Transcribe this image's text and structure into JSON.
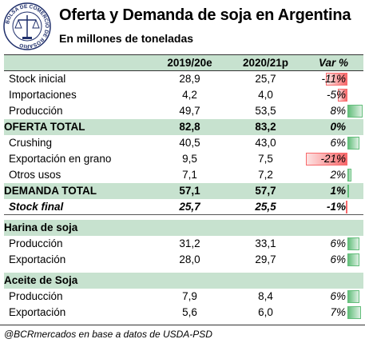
{
  "header": {
    "title": "Oferta y Demanda de soja en Argentina",
    "subtitle": "En millones de toneladas",
    "logo_text": "BOLSA DE COMERCIO DE ROSARIO"
  },
  "table": {
    "columns": [
      "",
      "2019/20e",
      "2020/21p",
      "Var %"
    ],
    "rows": [
      {
        "label": "Stock inicial",
        "v1": "28,9",
        "v2": "25,7",
        "var": "-11%",
        "pct": -11,
        "style": "normal"
      },
      {
        "label": "Importaciones",
        "v1": "4,2",
        "v2": "4,0",
        "var": "-5%",
        "pct": -5,
        "style": "normal"
      },
      {
        "label": "Producción",
        "v1": "49,7",
        "v2": "53,5",
        "var": "8%",
        "pct": 8,
        "style": "normal"
      },
      {
        "label": "OFERTA TOTAL",
        "v1": "82,8",
        "v2": "83,2",
        "var": "0%",
        "pct": 0,
        "style": "total"
      },
      {
        "label": "Crushing",
        "v1": "40,5",
        "v2": "43,0",
        "var": "6%",
        "pct": 6,
        "style": "normal"
      },
      {
        "label": "Exportación en grano",
        "v1": "9,5",
        "v2": "7,5",
        "var": "-21%",
        "pct": -21,
        "style": "normal"
      },
      {
        "label": "Otros usos",
        "v1": "7,1",
        "v2": "7,2",
        "var": "2%",
        "pct": 2,
        "style": "normal"
      },
      {
        "label": "DEMANDA TOTAL",
        "v1": "57,1",
        "v2": "57,7",
        "var": "1%",
        "pct": 1,
        "style": "total"
      },
      {
        "label": "Stock final",
        "v1": "25,7",
        "v2": "25,5",
        "var": "-1%",
        "pct": -1,
        "style": "stockfinal"
      },
      {
        "style": "spacer"
      },
      {
        "label": "Harina de soja",
        "style": "section"
      },
      {
        "label": "Producción",
        "v1": "31,2",
        "v2": "33,1",
        "var": "6%",
        "pct": 6,
        "style": "normal"
      },
      {
        "label": "Exportación",
        "v1": "28,0",
        "v2": "29,7",
        "var": "6%",
        "pct": 6,
        "style": "normal"
      },
      {
        "style": "spacer"
      },
      {
        "label": "Aceite de Soja",
        "style": "section"
      },
      {
        "label": "Producción",
        "v1": "7,9",
        "v2": "8,4",
        "var": "6%",
        "pct": 6,
        "style": "normal"
      },
      {
        "label": "Exportación",
        "v1": "5,6",
        "v2": "6,0",
        "var": "7%",
        "pct": 7,
        "style": "normal"
      }
    ],
    "colors": {
      "header_bg": "#c7e2cf",
      "neg_bar": "#f8696b",
      "pos_bar": "#63be7b"
    }
  },
  "footer": {
    "source": "@BCRmercados en base a datos de USDA-PSD"
  }
}
